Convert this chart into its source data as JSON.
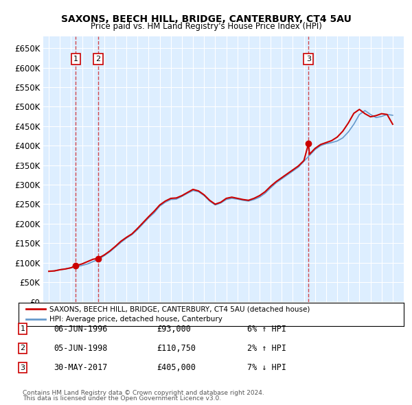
{
  "title": "SAXONS, BEECH HILL, BRIDGE, CANTERBURY, CT4 5AU",
  "subtitle": "Price paid vs. HM Land Registry's House Price Index (HPI)",
  "ylabel_values": [
    0,
    50000,
    100000,
    150000,
    200000,
    250000,
    300000,
    350000,
    400000,
    450000,
    500000,
    550000,
    600000,
    650000
  ],
  "ylabel_labels": [
    "£0",
    "£50K",
    "£100K",
    "£150K",
    "£200K",
    "£250K",
    "£300K",
    "£350K",
    "£400K",
    "£450K",
    "£500K",
    "£550K",
    "£600K",
    "£650K"
  ],
  "xlim": [
    1993.5,
    2026
  ],
  "ylim": [
    0,
    680000
  ],
  "background_color": "#ffffff",
  "plot_bg_color": "#ddeeff",
  "grid_color": "#ffffff",
  "hpi_color": "#6699cc",
  "price_color": "#cc0000",
  "legend_label_price": "SAXONS, BEECH HILL, BRIDGE, CANTERBURY, CT4 5AU (detached house)",
  "legend_label_hpi": "HPI: Average price, detached house, Canterbury",
  "transactions": [
    {
      "num": 1,
      "date_label": "06-JUN-1996",
      "price": 93000,
      "pct": "6%",
      "dir": "↑",
      "year": 1996.44
    },
    {
      "num": 2,
      "date_label": "05-JUN-1998",
      "price": 110750,
      "pct": "2%",
      "dir": "↑",
      "year": 1998.43
    },
    {
      "num": 3,
      "date_label": "30-MAY-2017",
      "price": 405000,
      "pct": "7%",
      "dir": "↓",
      "year": 2017.41
    }
  ],
  "hpi_years": [
    1994,
    1994.5,
    1995,
    1995.5,
    1996,
    1996.5,
    1997,
    1997.5,
    1998,
    1998.5,
    1999,
    1999.5,
    2000,
    2000.5,
    2001,
    2001.5,
    2002,
    2002.5,
    2003,
    2003.5,
    2004,
    2004.5,
    2005,
    2005.5,
    2006,
    2006.5,
    2007,
    2007.5,
    2008,
    2008.5,
    2009,
    2009.5,
    2010,
    2010.5,
    2011,
    2011.5,
    2012,
    2012.5,
    2013,
    2013.5,
    2014,
    2014.5,
    2015,
    2015.5,
    2016,
    2016.5,
    2017,
    2017.5,
    2018,
    2018.5,
    2019,
    2019.5,
    2020,
    2020.5,
    2021,
    2021.5,
    2022,
    2022.5,
    2023,
    2023.5,
    2024,
    2024.5,
    2025
  ],
  "hpi_values": [
    78000,
    79000,
    82000,
    84000,
    87000,
    90000,
    93000,
    97000,
    103000,
    109000,
    118000,
    128000,
    140000,
    152000,
    163000,
    172000,
    185000,
    200000,
    215000,
    228000,
    245000,
    255000,
    262000,
    263000,
    270000,
    278000,
    285000,
    282000,
    272000,
    258000,
    248000,
    253000,
    262000,
    265000,
    263000,
    260000,
    258000,
    262000,
    268000,
    278000,
    292000,
    305000,
    315000,
    325000,
    335000,
    345000,
    360000,
    375000,
    390000,
    400000,
    405000,
    408000,
    412000,
    420000,
    435000,
    455000,
    480000,
    490000,
    480000,
    472000,
    475000,
    480000,
    478000
  ],
  "price_years": [
    1994,
    1994.5,
    1995,
    1995.5,
    1996,
    1996.44,
    1996.5,
    1997,
    1997.5,
    1998,
    1998.43,
    1998.5,
    1999,
    1999.5,
    2000,
    2000.5,
    2001,
    2001.5,
    2002,
    2002.5,
    2003,
    2003.5,
    2004,
    2004.5,
    2005,
    2005.5,
    2006,
    2006.5,
    2007,
    2007.5,
    2008,
    2008.5,
    2009,
    2009.5,
    2010,
    2010.5,
    2011,
    2011.5,
    2012,
    2012.5,
    2013,
    2013.5,
    2014,
    2014.5,
    2015,
    2015.5,
    2016,
    2016.5,
    2017,
    2017.41,
    2017.5,
    2018,
    2018.5,
    2019,
    2019.5,
    2020,
    2020.5,
    2021,
    2021.5,
    2022,
    2022.5,
    2023,
    2023.5,
    2024,
    2024.5,
    2025
  ],
  "price_values": [
    78000,
    79000,
    82000,
    84000,
    87000,
    93000,
    93000,
    97000,
    103000,
    109000,
    110750,
    112000,
    120000,
    130000,
    142000,
    155000,
    165000,
    174000,
    188000,
    203000,
    218000,
    232000,
    248000,
    258000,
    265000,
    266000,
    272000,
    280000,
    288000,
    284000,
    274000,
    260000,
    250000,
    255000,
    265000,
    268000,
    265000,
    262000,
    260000,
    265000,
    272000,
    282000,
    296000,
    308000,
    318000,
    328000,
    338000,
    348000,
    362000,
    405000,
    378000,
    393000,
    403000,
    408000,
    413000,
    422000,
    437000,
    458000,
    483000,
    493000,
    482000,
    474000,
    477000,
    482000,
    480000,
    455000
  ],
  "footnote1": "Contains HM Land Registry data © Crown copyright and database right 2024.",
  "footnote2": "This data is licensed under the Open Government Licence v3.0."
}
